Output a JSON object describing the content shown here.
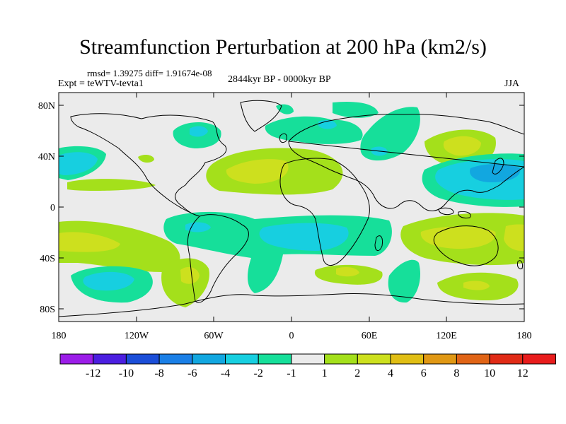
{
  "title": "Streamfunction Perturbation at 200 hPa (km2/s)",
  "stats_line": "rmsd= 1.39275 diff= 1.91674e-08",
  "experiment": "Expt = teWTV-tevta1",
  "period": "2844kyr BP - 0000kyr BP",
  "season": "JJA",
  "map": {
    "lat_ticks": [
      "80N",
      "40N",
      "0",
      "40S",
      "80S"
    ],
    "lon_ticks": [
      "180",
      "120W",
      "60W",
      "0",
      "60E",
      "120E",
      "180"
    ]
  },
  "colorbar": {
    "labels": [
      "-12",
      "-10",
      "-8",
      "-6",
      "-4",
      "-2",
      "-1",
      "1",
      "2",
      "4",
      "6",
      "8",
      "10",
      "12"
    ],
    "colors": [
      "#9b1de8",
      "#4b1ee0",
      "#1b4ed8",
      "#1a7fe6",
      "#12a7e0",
      "#17cfe0",
      "#16df9a",
      "#ebebeb",
      "#a4e01b",
      "#cde01e",
      "#e0be14",
      "#e09814",
      "#e06416",
      "#e02b16",
      "#e81c1c"
    ]
  },
  "colors": {
    "background": "#ebebeb",
    "coast": "#000000"
  }
}
